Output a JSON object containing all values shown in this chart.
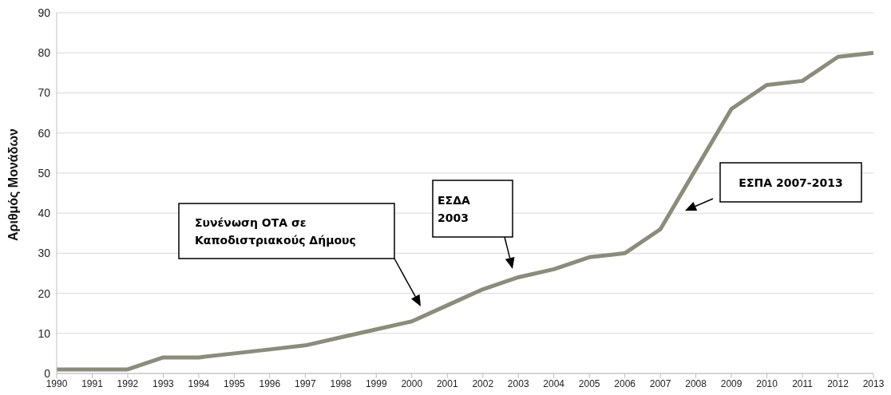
{
  "chart_data": {
    "type": "line",
    "ylabel": "Αριθμός Μονάδων",
    "categories": [
      "1990",
      "1991",
      "1992",
      "1993",
      "1994",
      "1995",
      "1996",
      "1997",
      "1998",
      "1999",
      "2000",
      "2001",
      "2002",
      "2003",
      "2004",
      "2005",
      "2006",
      "2007",
      "2008",
      "2009",
      "2010",
      "2011",
      "2012",
      "2013"
    ],
    "series": [
      {
        "color": "#8c8c7c",
        "values": [
          1,
          1,
          1,
          4,
          4,
          5,
          6,
          7,
          9,
          11,
          13,
          17,
          21,
          24,
          26,
          29,
          30,
          36,
          51,
          66,
          72,
          73,
          79,
          80
        ]
      }
    ],
    "ylim": [
      0,
      90
    ],
    "yticks": [
      0,
      10,
      20,
      30,
      40,
      50,
      60,
      70,
      80,
      90
    ],
    "grid": "y",
    "legend": false,
    "marker": "none",
    "line_style": "solid",
    "annotations": [
      "Συνένωση ΟΤΑ σε Καποδιστριακούς Δήμους",
      "ΕΣΔΑ 2003",
      "ΕΣΠΑ 2007-2013"
    ]
  }
}
